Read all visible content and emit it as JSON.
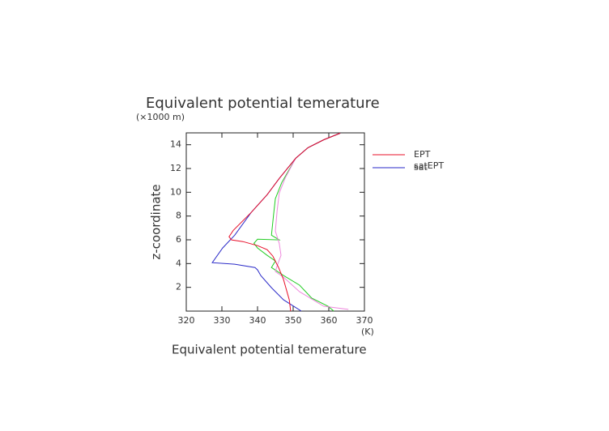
{
  "chart_data": {
    "type": "line",
    "title": "Equivalent potential temerature",
    "y_unit": "(×1000 m)",
    "y_label": "z-coordinate",
    "x_label": "Equivalent potential temerature",
    "x_unit": "(K)",
    "xlim": [
      320,
      370
    ],
    "xticks": [
      320,
      330,
      340,
      350,
      360,
      370
    ],
    "ylim": [
      0,
      15
    ],
    "yticks": [
      2,
      4,
      6,
      8,
      10,
      12,
      14
    ],
    "series": [
      {
        "name": "EPT",
        "color": "#e8102a",
        "x": [
          349.3,
          348.9,
          347.3,
          345.9,
          344.3,
          342.7,
          340,
          335.9,
          332.7,
          332,
          333.2,
          338.2,
          342.7,
          346.1,
          350.7,
          354.1,
          358.6,
          363.2
        ],
        "values": [
          0,
          0.95,
          2.65,
          3.67,
          4.63,
          5.17,
          5.51,
          5.85,
          5.99,
          6.26,
          6.8,
          8.3,
          9.8,
          11.16,
          12.86,
          13.74,
          14.42,
          14.97
        ]
      },
      {
        "name": "satEPT",
        "color": "#ee88dd",
        "x": [
          365.5,
          358.6,
          351.8,
          347.3,
          345,
          345.5,
          346.6,
          346.1,
          345,
          345.5,
          346.1,
          347.7,
          350.7,
          354.1,
          358.6,
          363.2
        ],
        "values": [
          0.14,
          0.41,
          1.63,
          2.86,
          3.33,
          3.81,
          4.69,
          5.71,
          6.73,
          8.44,
          9.93,
          11.16,
          12.86,
          13.74,
          14.42,
          14.97
        ]
      },
      {
        "name": "sat",
        "color": "#2a2ac8",
        "x": [
          352.3,
          347.3,
          343.9,
          340.9,
          340,
          339.3,
          333.6,
          327.3,
          330.2,
          333.6,
          338.2,
          342.7,
          346.1,
          350.7,
          354.1,
          358.6,
          363.2
        ],
        "values": [
          0,
          0.95,
          1.97,
          2.99,
          3.47,
          3.67,
          3.95,
          4.08,
          5.31,
          6.39,
          8.3,
          9.8,
          11.16,
          12.86,
          13.74,
          14.42,
          14.97
        ]
      },
      {
        "color": "#22cc22",
        "x": [
          361.4,
          359.8,
          355.2,
          351.8,
          347.3,
          343.9,
          345,
          342.7,
          340,
          339,
          340,
          346.1,
          343.9,
          344.5,
          345,
          346.8,
          350.7,
          354.1,
          358.6,
          363.2
        ],
        "values": [
          0,
          0.41,
          1.09,
          2.18,
          2.99,
          3.67,
          4.22,
          4.69,
          5.31,
          5.71,
          6.05,
          5.99,
          6.39,
          8.1,
          9.46,
          10.82,
          12.86,
          13.74,
          14.42,
          14.97
        ]
      }
    ]
  }
}
